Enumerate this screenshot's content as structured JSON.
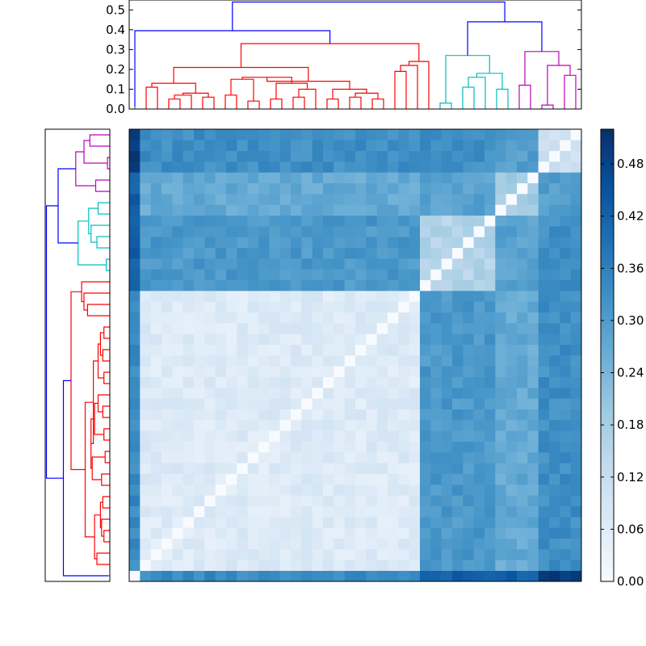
{
  "chart_data": [
    {
      "type": "dendrogram",
      "orientation": "top",
      "ylim": [
        0,
        0.55
      ],
      "yticks": [
        0.0,
        0.1,
        0.2,
        0.3,
        0.4,
        0.5
      ],
      "ytick_labels": [
        "0.0",
        "0.1",
        "0.2",
        "0.3",
        "0.4",
        "0.5"
      ],
      "leaf_count": 42,
      "color_groups": [
        "green",
        "red",
        "cyan",
        "magenta"
      ],
      "link_color_above_threshold": "#0000ff",
      "merge_heights": [
        0.54,
        0.395,
        0.44,
        0.33,
        0.29,
        0.27
      ]
    },
    {
      "type": "dendrogram",
      "orientation": "left",
      "leaf_count": 42,
      "color_groups": [
        "green",
        "red",
        "cyan",
        "magenta"
      ],
      "link_color_above_threshold": "#0000ff"
    },
    {
      "type": "heatmap",
      "rows": 42,
      "cols": 42,
      "colormap": "Blues",
      "vmin": 0.0,
      "vmax": 0.52,
      "colorbar_ticks": [
        0.0,
        0.06,
        0.12,
        0.18,
        0.24,
        0.3,
        0.36,
        0.42,
        0.48
      ],
      "colorbar_tick_labels": [
        "0.00",
        "0.06",
        "0.12",
        "0.18",
        "0.24",
        "0.30",
        "0.36",
        "0.42",
        "0.48"
      ],
      "groups": [
        {
          "size": 1,
          "within": 0.02,
          "to": [
            0.02,
            0.34,
            0.42,
            0.43,
            0.5
          ]
        },
        {
          "size": 26,
          "within": 0.07,
          "to": [
            0.34,
            0.1,
            0.31,
            0.27,
            0.33
          ]
        },
        {
          "size": 7,
          "within": 0.16,
          "to": [
            0.42,
            0.31,
            0.17,
            0.29,
            0.33
          ]
        },
        {
          "size": 4,
          "within": 0.18,
          "to": [
            0.43,
            0.27,
            0.29,
            0.12,
            0.3
          ]
        },
        {
          "size": 4,
          "within": 0.1,
          "to": [
            0.5,
            0.33,
            0.33,
            0.3,
            0.1
          ]
        }
      ]
    }
  ]
}
